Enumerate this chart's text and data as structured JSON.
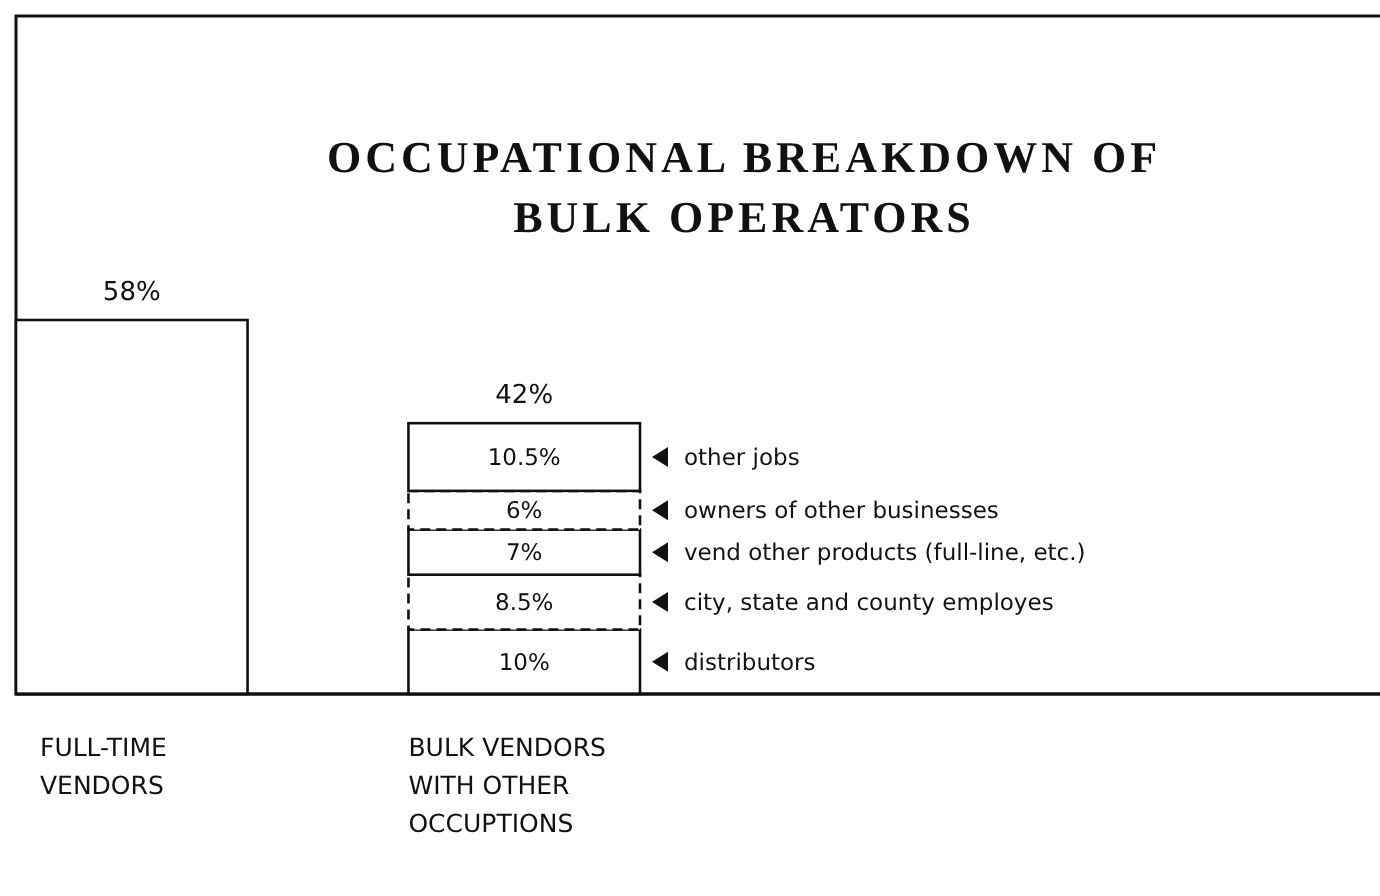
{
  "chart_data": {
    "type": "bar",
    "title": "OCCUPATIONAL BREAKDOWN OF\nBULK OPERATORS",
    "categories": [
      "FULL-TIME VENDORS",
      "BULK VENDORS WITH OTHER OCCUPTIONS"
    ],
    "stacked": true,
    "series": [
      {
        "color": "#ffffff",
        "values": [
          58,
          null
        ],
        "value_labels": [
          "58%",
          null
        ]
      },
      {
        "name": "distributors",
        "color": "#ffffff",
        "values": [
          null,
          10
        ],
        "value_labels": [
          null,
          "10%"
        ]
      },
      {
        "name": "city, state and county  employes",
        "color": "#ffffff",
        "values": [
          null,
          8.5
        ],
        "value_labels": [
          null,
          "8.5%"
        ]
      },
      {
        "name": "vend other products (full-line, etc.)",
        "color": "#ffffff",
        "values": [
          null,
          7
        ],
        "value_labels": [
          null,
          "7%"
        ]
      },
      {
        "name": "owners of other businesses",
        "color": "#ffffff",
        "values": [
          null,
          6
        ],
        "value_labels": [
          null,
          "6%"
        ]
      },
      {
        "name": "other jobs",
        "color": "#ffffff",
        "values": [
          null,
          10.5
        ],
        "value_labels": [
          null,
          "10.5%"
        ]
      }
    ],
    "totals": [
      null,
      "42%"
    ],
    "legend": "right"
  }
}
